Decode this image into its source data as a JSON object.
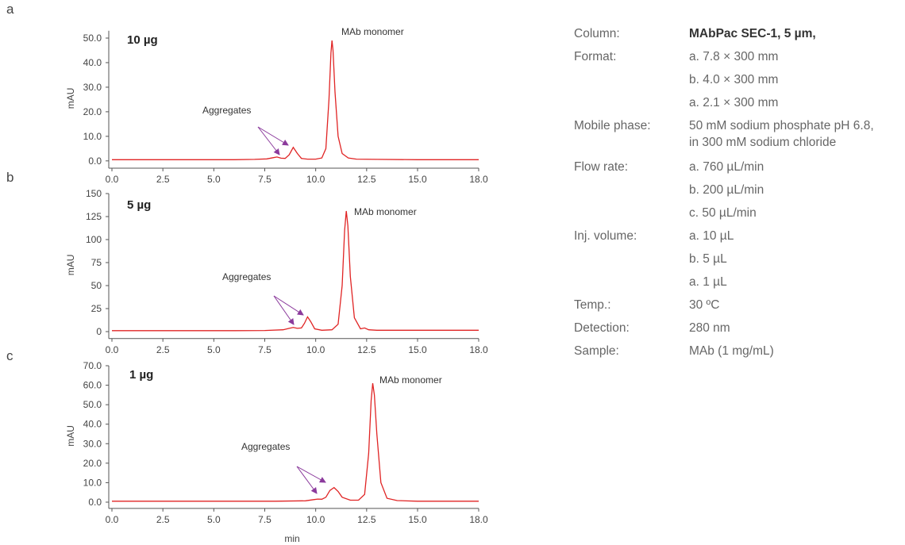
{
  "chart_data": [
    {
      "type": "line",
      "panel": "a",
      "title": "10 µg",
      "ylabel": "mAU",
      "color": "#e02424",
      "annotations": [
        "MAb monomer",
        "Aggregates"
      ],
      "x": [
        0,
        2,
        4,
        6,
        7,
        7.6,
        7.9,
        8.1,
        8.3,
        8.5,
        8.7,
        8.9,
        9.1,
        9.3,
        9.6,
        10.0,
        10.3,
        10.5,
        10.65,
        10.75,
        10.8,
        10.85,
        10.95,
        11.1,
        11.3,
        11.6,
        12,
        13,
        15,
        18
      ],
      "values": [
        0.5,
        0.5,
        0.5,
        0.5,
        0.6,
        0.8,
        1.3,
        1.6,
        1.1,
        1.0,
        2.5,
        5.5,
        3.0,
        1.0,
        0.7,
        0.7,
        1.2,
        5,
        25,
        44,
        49,
        45,
        28,
        10,
        3,
        1.2,
        0.7,
        0.6,
        0.5,
        0.5
      ],
      "xlim": [
        0,
        18
      ],
      "ylim": [
        -2,
        53
      ],
      "xticks": [
        {
          "value": 0,
          "label": "0.0"
        },
        2.5,
        {
          "value": 5,
          "label": "5.0"
        },
        7.5,
        {
          "value": 10,
          "label": "10.0"
        },
        12.5,
        {
          "value": 15,
          "label": "15.0"
        },
        {
          "value": 18,
          "label": "18.0"
        }
      ],
      "yticks": [
        {
          "value": 0,
          "label": "0.0"
        },
        {
          "value": 10,
          "label": "10.0"
        },
        {
          "value": 20,
          "label": "20.0"
        },
        {
          "value": 30,
          "label": "30.0"
        },
        {
          "value": 40,
          "label": "40.0"
        },
        {
          "value": 50,
          "label": "50.0"
        }
      ]
    },
    {
      "type": "line",
      "panel": "b",
      "title": "5 µg",
      "ylabel": "mAU",
      "color": "#e02424",
      "annotations": [
        "MAb monomer",
        "Aggregates"
      ],
      "x": [
        0,
        2,
        4,
        6,
        7.5,
        8.4,
        8.7,
        8.9,
        9.1,
        9.3,
        9.45,
        9.6,
        9.75,
        9.95,
        10.3,
        10.8,
        11.1,
        11.3,
        11.42,
        11.5,
        11.58,
        11.7,
        11.9,
        12.2,
        12.4,
        12.6,
        13,
        14,
        18
      ],
      "values": [
        1,
        1,
        1,
        1,
        1.2,
        2,
        3.5,
        4.5,
        3.5,
        4,
        9,
        16,
        11,
        3,
        1.5,
        2,
        8,
        50,
        110,
        131,
        115,
        60,
        15,
        3,
        4,
        2,
        1.5,
        1.5,
        1.5
      ],
      "xlim": [
        0,
        18
      ],
      "ylim": [
        -5,
        150
      ],
      "xticks": [
        {
          "value": 0,
          "label": "0.0"
        },
        2.5,
        {
          "value": 5,
          "label": "5.0"
        },
        7.5,
        {
          "value": 10,
          "label": "10.0"
        },
        12.5,
        {
          "value": 15,
          "label": "15.0"
        },
        {
          "value": 18,
          "label": "18.0"
        }
      ],
      "yticks": [
        0,
        25,
        50,
        75,
        100,
        125,
        150
      ]
    },
    {
      "type": "line",
      "panel": "c",
      "title": "1 µg",
      "ylabel": "mAU",
      "xlabel": "min",
      "color": "#e02424",
      "annotations": [
        "MAb monomer",
        "Aggregates"
      ],
      "x": [
        0,
        3,
        6,
        8,
        9.5,
        9.9,
        10.1,
        10.3,
        10.5,
        10.7,
        10.9,
        11.1,
        11.3,
        11.7,
        12.1,
        12.4,
        12.6,
        12.72,
        12.8,
        12.88,
        13.0,
        13.2,
        13.5,
        14,
        15,
        18
      ],
      "values": [
        0.5,
        0.5,
        0.5,
        0.5,
        0.7,
        1.3,
        1.6,
        1.5,
        2.5,
        6,
        7.5,
        5.5,
        2.5,
        1,
        1,
        4,
        25,
        52,
        61,
        55,
        35,
        10,
        2,
        0.8,
        0.5,
        0.5
      ],
      "xlim": [
        0,
        18
      ],
      "ylim": [
        -2,
        70
      ],
      "xticks": [
        {
          "value": 0,
          "label": "0.0"
        },
        2.5,
        {
          "value": 5,
          "label": "5.0"
        },
        7.5,
        {
          "value": 10,
          "label": "10.0"
        },
        12.5,
        {
          "value": 15,
          "label": "15.0"
        },
        {
          "value": 18,
          "label": "18.0"
        }
      ],
      "yticks": [
        {
          "value": 0,
          "label": "0.0"
        },
        {
          "value": 10,
          "label": "10.0"
        },
        {
          "value": 20,
          "label": "20.0"
        },
        {
          "value": 30,
          "label": "30.0"
        },
        {
          "value": 40,
          "label": "40.0"
        },
        {
          "value": 50,
          "label": "50.0"
        },
        {
          "value": 60,
          "label": "60.0"
        },
        {
          "value": 70,
          "label": "70.0"
        }
      ]
    }
  ],
  "conditions": [
    {
      "label": "Column:",
      "values": [
        "MAbPac SEC-1, 5 µm,"
      ]
    },
    {
      "label": "Format:",
      "values": [
        "a. 7.8 × 300 mm",
        "b. 4.0 × 300 mm",
        "a. 2.1 × 300 mm"
      ]
    },
    {
      "label": "Mobile phase:",
      "values": [
        "50 mM sodium phosphate pH 6.8,",
        "in 300 mM sodium chloride"
      ]
    },
    {
      "label": "Flow rate:",
      "values": [
        "a. 760 µL/min",
        "b. 200 µL/min",
        "c.  50 µL/min"
      ]
    },
    {
      "label": "Inj. volume:",
      "values": [
        "a. 10 µL",
        "b. 5 µL",
        "a. 1 µL"
      ]
    },
    {
      "label": "Temp.:",
      "values": [
        "30 ºC"
      ]
    },
    {
      "label": "Detection:",
      "values": [
        "280 nm"
      ]
    },
    {
      "label": "Sample:",
      "values": [
        "MAb (1 mg/mL)"
      ]
    }
  ]
}
